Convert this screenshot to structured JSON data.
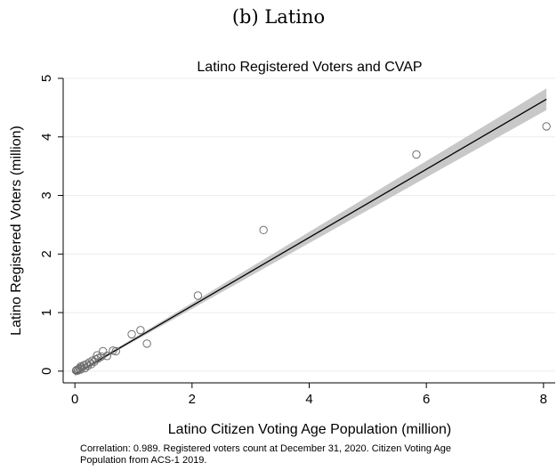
{
  "header": {
    "panel_label": "(b) Latino"
  },
  "chart_data": {
    "type": "scatter",
    "title": "Latino Registered Voters and CVAP",
    "xlabel": "Latino Citizen Voting Age Population (million)",
    "ylabel": "Latino Registered Voters (million)",
    "xlim": [
      -0.2,
      8.2
    ],
    "ylim": [
      -0.2,
      5.0
    ],
    "x_ticks": [
      0,
      2,
      4,
      6,
      8
    ],
    "y_ticks": [
      0,
      1,
      2,
      3,
      4,
      5
    ],
    "grid": "horizontal",
    "legend": "none",
    "colors": {
      "marker": "#6e6e6e",
      "fit_line": "#000000",
      "ci_band": "#c8c8c8",
      "grid": "#ececec"
    },
    "points": [
      {
        "x": 0.02,
        "y": 0.01
      },
      {
        "x": 0.03,
        "y": 0.02
      },
      {
        "x": 0.05,
        "y": 0.01
      },
      {
        "x": 0.06,
        "y": 0.03
      },
      {
        "x": 0.08,
        "y": 0.05
      },
      {
        "x": 0.1,
        "y": 0.03
      },
      {
        "x": 0.1,
        "y": 0.08
      },
      {
        "x": 0.12,
        "y": 0.06
      },
      {
        "x": 0.15,
        "y": 0.1
      },
      {
        "x": 0.17,
        "y": 0.05
      },
      {
        "x": 0.2,
        "y": 0.12
      },
      {
        "x": 0.22,
        "y": 0.09
      },
      {
        "x": 0.25,
        "y": 0.15
      },
      {
        "x": 0.28,
        "y": 0.12
      },
      {
        "x": 0.3,
        "y": 0.18
      },
      {
        "x": 0.33,
        "y": 0.16
      },
      {
        "x": 0.36,
        "y": 0.2
      },
      {
        "x": 0.38,
        "y": 0.27
      },
      {
        "x": 0.4,
        "y": 0.22
      },
      {
        "x": 0.45,
        "y": 0.25
      },
      {
        "x": 0.48,
        "y": 0.34
      },
      {
        "x": 0.55,
        "y": 0.26
      },
      {
        "x": 0.65,
        "y": 0.35
      },
      {
        "x": 0.7,
        "y": 0.34
      },
      {
        "x": 0.97,
        "y": 0.63
      },
      {
        "x": 1.12,
        "y": 0.7
      },
      {
        "x": 1.23,
        "y": 0.47
      },
      {
        "x": 2.1,
        "y": 1.29
      },
      {
        "x": 3.22,
        "y": 2.41
      },
      {
        "x": 5.83,
        "y": 3.7
      },
      {
        "x": 8.05,
        "y": 4.18
      }
    ],
    "fit": {
      "intercept": -0.05,
      "slope": 0.583,
      "x_range": [
        0,
        8.05
      ]
    },
    "note": "Correlation: 0.989. Registered voters count at December 31, 2020. Citizen Voting Age Population from ACS-1 2019."
  }
}
